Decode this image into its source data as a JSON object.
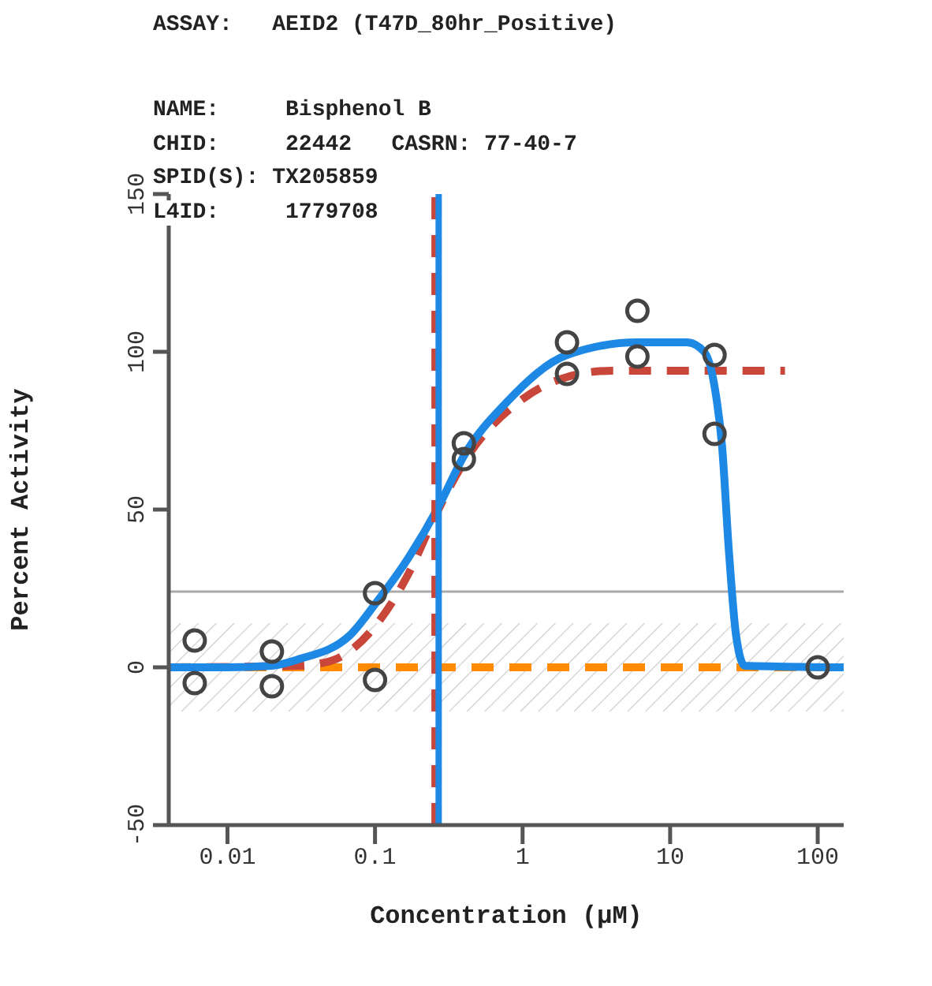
{
  "chart_data": {
    "type": "scatter",
    "title": "ASSAY:   AEID2 (T47D_80hr_Positive)",
    "annotations": [
      "NAME:     Bisphenol B",
      "CHID:     22442   CASRN: 77-40-7",
      "SPID(S): TX205859",
      "L4ID:     1779708"
    ],
    "xlabel": "Concentration (µM)",
    "ylabel": "Percent Activity",
    "log": "x",
    "xlim": [
      0.004,
      150
    ],
    "xticks": [
      0.01,
      0.1,
      1,
      10,
      100
    ],
    "ylim": [
      -50,
      150
    ],
    "yticks": [
      -50,
      0,
      50,
      100,
      150
    ],
    "grid": false,
    "series": [
      {
        "type": "line",
        "color": "#ff8c00",
        "line_style": "dashed",
        "marker": "none",
        "x": [
          0.004,
          150
        ],
        "values": [
          0,
          0
        ]
      },
      {
        "type": "line",
        "color": "#c8473a",
        "line_style": "dashed",
        "marker": "none",
        "x": [
          0.004,
          0.03,
          0.05,
          0.1,
          0.17,
          0.25,
          0.4,
          1,
          2,
          4,
          60
        ],
        "values": [
          0,
          0.5,
          2,
          13,
          30,
          47,
          65,
          85,
          92,
          94,
          94
        ]
      },
      {
        "type": "line",
        "color": "#1e88e5",
        "line_style": "solid",
        "marker": "none",
        "x": [
          0.004,
          0.01,
          0.02,
          0.03,
          0.067,
          0.1,
          0.17,
          0.27,
          0.4,
          0.78,
          2,
          6,
          13,
          17,
          20,
          22.5,
          25,
          28,
          32,
          150
        ],
        "values": [
          0,
          0,
          0.5,
          2.5,
          10,
          20,
          35,
          51,
          67,
          84,
          99,
          103,
          103,
          100,
          89,
          70,
          37,
          10,
          0.5,
          0
        ]
      },
      {
        "color": "#444444",
        "marker": "circle",
        "x": [
          0.006,
          0.006,
          0.02,
          0.02,
          0.1,
          0.1,
          0.4,
          0.4,
          2,
          2,
          6,
          6,
          20,
          20,
          100
        ],
        "values": [
          8.5,
          -5,
          5,
          -6,
          23.5,
          -4,
          71,
          66,
          103,
          93,
          113,
          98.5,
          99,
          74,
          0
        ]
      }
    ],
    "ref_lines": [
      {
        "axis": "y",
        "value": 24,
        "color": "#aaaaaa",
        "line_style": "solid"
      },
      {
        "axis": "x",
        "value": 0.25,
        "color": "#c8473a",
        "line_style": "dashed"
      },
      {
        "axis": "x",
        "value": 0.27,
        "color": "#1e88e5",
        "line_style": "solid"
      }
    ],
    "bands": [
      {
        "axis": "y",
        "from": -14,
        "to": 14,
        "color": "#999999"
      }
    ]
  }
}
